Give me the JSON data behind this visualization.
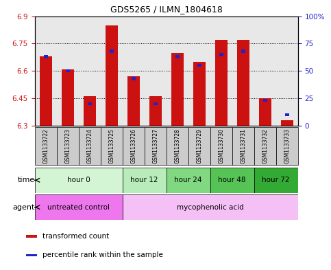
{
  "title": "GDS5265 / ILMN_1804618",
  "samples": [
    "GSM1133722",
    "GSM1133723",
    "GSM1133724",
    "GSM1133725",
    "GSM1133726",
    "GSM1133727",
    "GSM1133728",
    "GSM1133729",
    "GSM1133730",
    "GSM1133731",
    "GSM1133732",
    "GSM1133733"
  ],
  "transformed_count": [
    6.68,
    6.61,
    6.46,
    6.85,
    6.57,
    6.46,
    6.7,
    6.65,
    6.77,
    6.77,
    6.45,
    6.33
  ],
  "percentile_rank": [
    63,
    50,
    20,
    68,
    43,
    20,
    63,
    55,
    65,
    68,
    23,
    10
  ],
  "ylim": [
    6.3,
    6.9
  ],
  "y_ticks": [
    6.3,
    6.45,
    6.6,
    6.75,
    6.9
  ],
  "y_tick_labels": [
    "6.3",
    "6.45",
    "6.6",
    "6.75",
    "6.9"
  ],
  "right_yticks": [
    0,
    25,
    50,
    75,
    100
  ],
  "right_ytick_labels": [
    "0",
    "25",
    "50",
    "75",
    "100%"
  ],
  "time_groups": [
    {
      "label": "hour 0",
      "indices": [
        0,
        1,
        2,
        3
      ],
      "color": "#d4f5d4"
    },
    {
      "label": "hour 12",
      "indices": [
        4,
        5
      ],
      "color": "#b8edbb"
    },
    {
      "label": "hour 24",
      "indices": [
        6,
        7
      ],
      "color": "#80d880"
    },
    {
      "label": "hour 48",
      "indices": [
        8,
        9
      ],
      "color": "#55c455"
    },
    {
      "label": "hour 72",
      "indices": [
        10,
        11
      ],
      "color": "#33aa33"
    }
  ],
  "agent_groups": [
    {
      "label": "untreated control",
      "indices": [
        0,
        1,
        2,
        3
      ],
      "color": "#ee77ee"
    },
    {
      "label": "mycophenolic acid",
      "indices": [
        4,
        5,
        6,
        7,
        8,
        9,
        10,
        11
      ],
      "color": "#f5c0f5"
    }
  ],
  "bar_color": "#cc1111",
  "percentile_color": "#2222cc",
  "bg_color": "#ffffff",
  "sample_bg": "#cccccc",
  "legend_items": [
    {
      "label": "transformed count",
      "color": "#cc1111"
    },
    {
      "label": "percentile rank within the sample",
      "color": "#2222cc"
    }
  ]
}
